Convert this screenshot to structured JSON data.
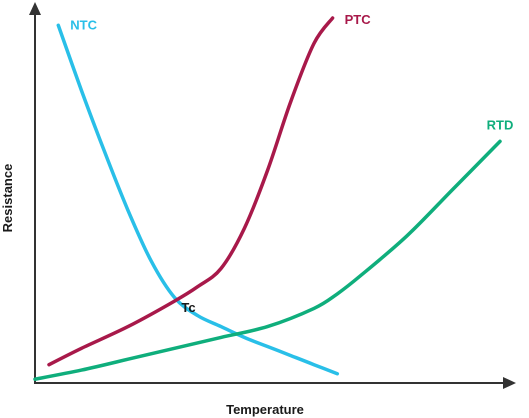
{
  "chart_data": {
    "type": "line",
    "title": "",
    "xlabel": "Temperature",
    "ylabel": "Resistance",
    "xlim": [
      0,
      100
    ],
    "ylim": [
      0,
      100
    ],
    "grid": false,
    "legend": "none",
    "axis_color": "#333333",
    "series": [
      {
        "name": "NTC",
        "color": "#29bfe8",
        "x": [
          5,
          10,
          15,
          20,
          25,
          30,
          35,
          40,
          45,
          50,
          55,
          60,
          65
        ],
        "y": [
          98,
          80,
          63,
          47,
          33,
          23,
          18,
          15,
          12,
          9.5,
          7,
          4.5,
          2
        ]
      },
      {
        "name": "PTC",
        "color": "#a8194a",
        "x": [
          3,
          10,
          20,
          30,
          35,
          40,
          45,
          50,
          55,
          60,
          64
        ],
        "y": [
          4.5,
          9,
          15,
          22,
          26,
          31,
          42,
          58,
          77,
          93,
          100
        ]
      },
      {
        "name": "RTD",
        "color": "#0fae7c",
        "x": [
          0,
          10,
          20,
          30,
          40,
          50,
          60,
          65,
          70,
          80,
          90,
          100
        ],
        "y": [
          0.5,
          3,
          6,
          9,
          12,
          15,
          20,
          24,
          29,
          40,
          53,
          66
        ]
      }
    ],
    "annotations": [
      {
        "text": "Tc",
        "x": 33,
        "y": 19
      }
    ]
  }
}
